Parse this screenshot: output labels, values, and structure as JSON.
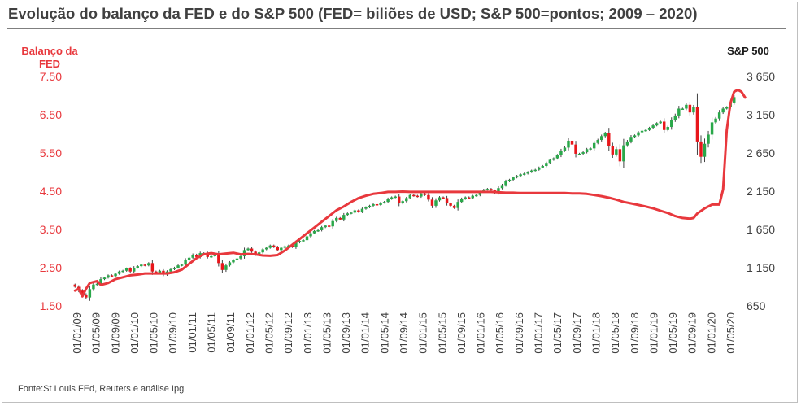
{
  "title": "Evolução do balanço da FED e do S&P 500 (FED= biliões de USD; S&P 500=pontos; 2009 – 2020)",
  "source": "Fonte:St Louis FEd, Reuters e análise Ipg",
  "colors": {
    "fed": "#e8383d",
    "up": "#2aa84a",
    "down": "#e8161b",
    "wick": "#404040",
    "axis_text": "#404040"
  },
  "chart_data": {
    "type": "line+candlestick",
    "left_axis": {
      "label_line1": "Balanço da",
      "label_line2": "FED",
      "ticks": [
        "7.50",
        "6.50",
        "5.50",
        "4.50",
        "3.50",
        "2.50",
        "1.50"
      ],
      "range": [
        1.5,
        7.5
      ]
    },
    "right_axis": {
      "label": "S&P 500",
      "ticks": [
        "3 650",
        "3 150",
        "2 650",
        "2 150",
        "1 650",
        "1 150",
        "650"
      ],
      "range": [
        650,
        3650
      ]
    },
    "x_tick_labels": [
      "01/01/09",
      "01/05/09",
      "01/09/09",
      "01/01/10",
      "01/05/10",
      "01/09/10",
      "01/01/11",
      "01/05/11",
      "01/09/11",
      "01/01/12",
      "01/05/12",
      "01/09/12",
      "01/01/13",
      "01/05/13",
      "01/09/13",
      "01/01/14",
      "01/05/14",
      "01/09/14",
      "01/01/15",
      "01/05/15",
      "01/09/15",
      "01/01/16",
      "01/05/16",
      "01/09/16",
      "01/01/17",
      "01/05/17",
      "01/09/17",
      "01/01/18",
      "01/05/18",
      "01/09/18",
      "01/01/19",
      "01/05/19",
      "01/09/19",
      "01/01/20",
      "01/05/20"
    ],
    "series": [
      {
        "name": "Balanço da FED",
        "axis": "left",
        "type": "line",
        "points": [
          [
            0,
            1.9
          ],
          [
            1,
            1.95
          ],
          [
            2,
            1.75
          ],
          [
            3,
            1.95
          ],
          [
            4,
            2.1
          ],
          [
            6,
            2.15
          ],
          [
            7,
            2.05
          ],
          [
            9,
            2.1
          ],
          [
            11,
            2.2
          ],
          [
            13,
            2.25
          ],
          [
            15,
            2.3
          ],
          [
            17,
            2.32
          ],
          [
            19,
            2.35
          ],
          [
            21,
            2.35
          ],
          [
            23,
            2.35
          ],
          [
            25,
            2.35
          ],
          [
            27,
            2.38
          ],
          [
            29,
            2.45
          ],
          [
            31,
            2.6
          ],
          [
            33,
            2.75
          ],
          [
            35,
            2.85
          ],
          [
            37,
            2.88
          ],
          [
            39,
            2.85
          ],
          [
            41,
            2.87
          ],
          [
            43,
            2.89
          ],
          [
            45,
            2.85
          ],
          [
            47,
            2.86
          ],
          [
            49,
            2.85
          ],
          [
            51,
            2.82
          ],
          [
            53,
            2.81
          ],
          [
            55,
            2.83
          ],
          [
            57,
            2.95
          ],
          [
            59,
            3.1
          ],
          [
            61,
            3.25
          ],
          [
            63,
            3.4
          ],
          [
            65,
            3.55
          ],
          [
            67,
            3.7
          ],
          [
            69,
            3.85
          ],
          [
            71,
            4.0
          ],
          [
            73,
            4.1
          ],
          [
            75,
            4.22
          ],
          [
            77,
            4.32
          ],
          [
            79,
            4.38
          ],
          [
            81,
            4.43
          ],
          [
            83,
            4.45
          ],
          [
            85,
            4.48
          ],
          [
            87,
            4.48
          ],
          [
            89,
            4.49
          ],
          [
            91,
            4.48
          ],
          [
            93,
            4.48
          ],
          [
            95,
            4.48
          ],
          [
            97,
            4.48
          ],
          [
            99,
            4.48
          ],
          [
            101,
            4.48
          ],
          [
            103,
            4.48
          ],
          [
            105,
            4.48
          ],
          [
            107,
            4.48
          ],
          [
            109,
            4.48
          ],
          [
            111,
            4.48
          ],
          [
            113,
            4.48
          ],
          [
            115,
            4.47
          ],
          [
            117,
            4.46
          ],
          [
            119,
            4.46
          ],
          [
            121,
            4.45
          ],
          [
            123,
            4.45
          ],
          [
            125,
            4.45
          ],
          [
            127,
            4.45
          ],
          [
            129,
            4.45
          ],
          [
            131,
            4.45
          ],
          [
            133,
            4.45
          ],
          [
            135,
            4.44
          ],
          [
            137,
            4.44
          ],
          [
            139,
            4.43
          ],
          [
            141,
            4.4
          ],
          [
            143,
            4.37
          ],
          [
            145,
            4.33
          ],
          [
            147,
            4.28
          ],
          [
            149,
            4.22
          ],
          [
            151,
            4.18
          ],
          [
            153,
            4.14
          ],
          [
            155,
            4.1
          ],
          [
            157,
            4.05
          ],
          [
            159,
            3.99
          ],
          [
            161,
            3.93
          ],
          [
            163,
            3.85
          ],
          [
            165,
            3.8
          ],
          [
            167,
            3.78
          ],
          [
            168,
            3.8
          ],
          [
            169,
            3.92
          ],
          [
            171,
            4.05
          ],
          [
            173,
            4.15
          ],
          [
            175,
            4.15
          ],
          [
            176,
            4.55
          ],
          [
            177,
            6.1
          ],
          [
            178,
            6.8
          ],
          [
            179,
            7.1
          ],
          [
            180,
            7.15
          ],
          [
            181,
            7.1
          ],
          [
            182,
            6.95
          ]
        ]
      },
      {
        "name": "S&P 500",
        "axis": "right",
        "type": "candlestick",
        "values": [
          900,
          850,
          800,
          760,
          870,
          930,
          940,
          1000,
          1020,
          1050,
          1040,
          1070,
          1100,
          1110,
          1140,
          1100,
          1150,
          1170,
          1190,
          1180,
          1210,
          1100,
          1080,
          1110,
          1060,
          1100,
          1130,
          1150,
          1180,
          1190,
          1250,
          1280,
          1320,
          1290,
          1340,
          1340,
          1290,
          1300,
          1320,
          1210,
          1120,
          1180,
          1220,
          1250,
          1270,
          1300,
          1380,
          1400,
          1360,
          1320,
          1350,
          1390,
          1410,
          1440,
          1420,
          1380,
          1410,
          1430,
          1440,
          1420,
          1480,
          1500,
          1510,
          1560,
          1600,
          1630,
          1640,
          1680,
          1700,
          1690,
          1760,
          1800,
          1780,
          1840,
          1860,
          1870,
          1900,
          1880,
          1920,
          1940,
          1960,
          1980,
          1970,
          2000,
          2010,
          2050,
          2070,
          2080,
          1990,
          2020,
          2060,
          2100,
          2090,
          2080,
          2120,
          2100,
          2040,
          1960,
          2030,
          2070,
          2060,
          1990,
          1960,
          1930,
          2010,
          2050,
          2070,
          2060,
          2090,
          2100,
          2140,
          2170,
          2180,
          2160,
          2130,
          2190,
          2230,
          2280,
          2300,
          2330,
          2350,
          2370,
          2380,
          2400,
          2420,
          2430,
          2460,
          2480,
          2520,
          2560,
          2580,
          2620,
          2680,
          2720,
          2810,
          2760,
          2640,
          2640,
          2660,
          2700,
          2710,
          2780,
          2820,
          2870,
          2910,
          2740,
          2630,
          2700,
          2540,
          2750,
          2800,
          2860,
          2880,
          2920,
          2940,
          2950,
          2980,
          3010,
          3040,
          3060,
          2950,
          2990,
          3080,
          3140,
          3230,
          3230,
          3280,
          3180,
          3250,
          2800,
          2600,
          2770,
          2890,
          3050,
          3100,
          3180,
          3230,
          3250,
          3310,
          3380
        ]
      }
    ]
  }
}
